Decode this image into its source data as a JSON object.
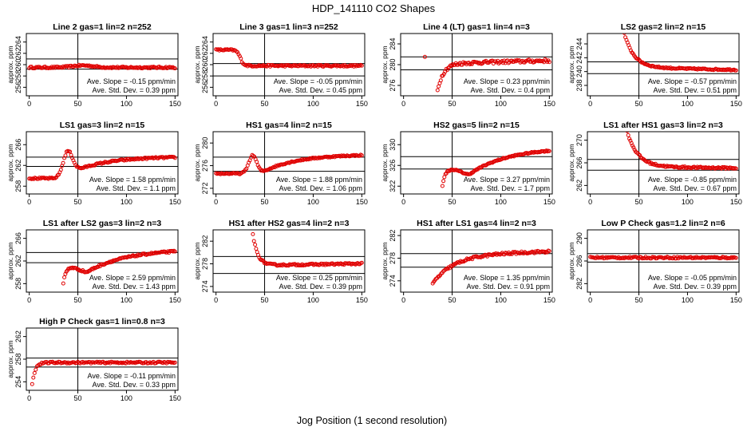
{
  "figure": {
    "title": "HDP_141110  CO2 Shapes",
    "xlabel": "Jog Position (1 second resolution)"
  },
  "chart_data": [
    {
      "type": "scatter",
      "title": "Line 2 gas=1 lin=2 n=252",
      "ylabel": "approx. ppm",
      "xlim": [
        -3,
        153
      ],
      "ylim": [
        254.5,
        265.5
      ],
      "yticks": [
        256,
        258,
        260,
        262,
        264
      ],
      "xticks": [
        0,
        50,
        100,
        150
      ],
      "vline": 50,
      "hlines": [
        261,
        259.2
      ],
      "slope_label": "Ave. Slope = -0.15 ppm/min",
      "std_label": "Ave. Std. Dev. = 0.39 ppm",
      "shape": {
        "kind": "flat",
        "x0": 0,
        "x1": 150,
        "base": 259.5,
        "noise": 0.15,
        "bump": {
          "c": 55,
          "w": 15,
          "a": 0.35
        },
        "points": 130
      }
    },
    {
      "type": "scatter",
      "title": "Line 3 gas=1 lin=3 n=252",
      "ylabel": "approx. ppm",
      "xlim": [
        -3,
        153
      ],
      "ylim": [
        254.5,
        265.5
      ],
      "yticks": [
        256,
        258,
        260,
        262,
        264
      ],
      "xticks": [
        0,
        50,
        100,
        150
      ],
      "vline": 50,
      "hlines": [
        260.2,
        258
      ],
      "slope_label": "Ave. Slope = -0.05 ppm/min",
      "std_label": "Ave. Std. Dev. = 0.45 ppm",
      "shape": {
        "kind": "highstep",
        "x0": 0,
        "x1": 150,
        "hi": 262.6,
        "lo": 259.8,
        "xs": 25,
        "noise": 0.15,
        "points": 130
      }
    },
    {
      "type": "scatter",
      "title": "Line 4 (LT) gas=1 lin=4 n=3",
      "ylabel": "approx. ppm",
      "xlim": [
        -3,
        153
      ],
      "ylim": [
        274,
        286
      ],
      "yticks": [
        276,
        280,
        284
      ],
      "xticks": [
        0,
        50,
        100,
        150
      ],
      "vline": 50,
      "hlines": [
        281.5,
        279
      ],
      "slope_label": "Ave. Slope = 0.23 ppm/min",
      "std_label": "Ave. Std. Dev. = 0.4 ppm",
      "shape": {
        "kind": "rise",
        "x0": 35,
        "x1": 150,
        "start": 275,
        "end": 280.2,
        "tau": 6,
        "slope": 0.005,
        "noise": 0.3,
        "points": 105,
        "extra": [
          [
            22,
            281.5
          ]
        ]
      }
    },
    {
      "type": "scatter",
      "title": "LS2 gas=2 lin=2 n=15",
      "ylabel": "approx. ppm",
      "xlim": [
        -3,
        153
      ],
      "ylim": [
        236.5,
        245.5
      ],
      "yticks": [
        238,
        240,
        242,
        244
      ],
      "xticks": [
        0,
        50,
        100,
        150
      ],
      "vline": 50,
      "hlines": [
        241.4,
        239.7
      ],
      "slope_label": "Ave. Slope = -0.57 ppm/min",
      "std_label": "Ave. Std. Dev. = 0.51 ppm",
      "shape": {
        "kind": "decay",
        "x0": 35,
        "x1": 150,
        "start": 245.5,
        "end": 240.6,
        "tau": 10,
        "slope": -0.003,
        "noise": 0.1,
        "points": 105
      }
    },
    {
      "type": "scatter",
      "title": "LS1 gas=3 lin=2 n=15",
      "ylabel": "approx. ppm",
      "xlim": [
        -3,
        153
      ],
      "ylim": [
        256.5,
        268.5
      ],
      "yticks": [
        258,
        262,
        266
      ],
      "xticks": [
        0,
        50,
        100,
        150
      ],
      "vline": 50,
      "hlines": [
        263.6,
        261.8
      ],
      "slope_label": "Ave. Slope = 1.58 ppm/min",
      "std_label": "Ave. Std. Dev. = 1.1 ppm",
      "shape": {
        "kind": "wave",
        "x0": 0,
        "x1": 150,
        "pre": 259.5,
        "peak": 264.8,
        "c": 40,
        "w": 7,
        "trough": 261.5,
        "end": 263.7,
        "noise": 0.15,
        "points": 130
      }
    },
    {
      "type": "scatter",
      "title": "HS1 gas=4 lin=2 n=15",
      "ylabel": "approx. ppm",
      "xlim": [
        -3,
        153
      ],
      "ylim": [
        271,
        282
      ],
      "yticks": [
        272,
        276,
        280
      ],
      "xticks": [
        0,
        50,
        100,
        150
      ],
      "vline": 50,
      "hlines": [
        277.5,
        275
      ],
      "slope_label": "Ave. Slope = 1.88 ppm/min",
      "std_label": "Ave. Std. Dev. = 1.06 ppm",
      "shape": {
        "kind": "wave",
        "x0": 0,
        "x1": 150,
        "pre": 274.6,
        "peak": 277.8,
        "c": 38,
        "w": 6,
        "trough": 275.3,
        "end": 278,
        "noise": 0.12,
        "points": 130
      }
    },
    {
      "type": "scatter",
      "title": "HS2 gas=5 lin=2 n=15",
      "ylabel": "approx. ppm",
      "xlim": [
        -3,
        153
      ],
      "ylim": [
        320.5,
        332.5
      ],
      "yticks": [
        322,
        326,
        330
      ],
      "xticks": [
        0,
        50,
        100,
        150
      ],
      "vline": 50,
      "hlines": [
        327.7,
        325.3
      ],
      "slope_label": "Ave. Slope = 3.27 ppm/min",
      "std_label": "Ave. Std. Dev. = 1.7 ppm",
      "shape": {
        "kind": "dipwave",
        "x0": 40,
        "x1": 150,
        "start": 322,
        "peak": 325.2,
        "c": 52,
        "dip": 324.2,
        "end": 329.5,
        "noise": 0.12,
        "points": 110
      }
    },
    {
      "type": "scatter",
      "title": "LS1 after HS1 gas=3 lin=2 n=3",
      "ylabel": "approx. ppm",
      "xlim": [
        -3,
        153
      ],
      "ylim": [
        260.5,
        271.5
      ],
      "yticks": [
        262,
        266,
        270
      ],
      "xticks": [
        0,
        50,
        100,
        150
      ],
      "vline": 50,
      "hlines": [
        266.6,
        264.7
      ],
      "slope_label": "Ave. Slope = -0.85 ppm/min",
      "std_label": "Ave. Std. Dev. = 0.67 ppm",
      "shape": {
        "kind": "decay",
        "x0": 38,
        "x1": 150,
        "start": 271.5,
        "end": 265.3,
        "tau": 11,
        "slope": -0.002,
        "noise": 0.15,
        "points": 105
      }
    },
    {
      "type": "scatter",
      "title": "LS1 after LS2 gas=3 lin=2 n=3",
      "ylabel": "approx. ppm",
      "xlim": [
        -3,
        153
      ],
      "ylim": [
        256.5,
        267.5
      ],
      "yticks": [
        258,
        262,
        266
      ],
      "xticks": [
        0,
        50,
        100,
        150
      ],
      "vline": 50,
      "hlines": [
        263.5,
        261.7
      ],
      "slope_label": "Ave. Slope = 2.59 ppm/min",
      "std_label": "Ave. Std. Dev. = 1.43 ppm",
      "shape": {
        "kind": "dipwave",
        "x0": 35,
        "x1": 150,
        "start": 258,
        "peak": 260.9,
        "c": 44,
        "dip": 260,
        "end": 264.1,
        "noise": 0.15,
        "points": 110
      }
    },
    {
      "type": "scatter",
      "title": "HS1 after HS2 gas=4 lin=2 n=3",
      "ylabel": "approx. ppm",
      "xlim": [
        -3,
        153
      ],
      "ylim": [
        273,
        284
      ],
      "yticks": [
        274,
        278,
        282
      ],
      "xticks": [
        0,
        50,
        100,
        150
      ],
      "vline": 50,
      "hlines": [
        279.3,
        276.3
      ],
      "slope_label": "Ave. Slope = 0.25 ppm/min",
      "std_label": "Ave. Std. Dev. = 0.39 ppm",
      "shape": {
        "kind": "decay",
        "x0": 38,
        "x1": 150,
        "start": 283.2,
        "end": 277.7,
        "tau": 5,
        "slope": 0.003,
        "noise": 0.15,
        "points": 105
      }
    },
    {
      "type": "scatter",
      "title": "HS1 after LS1 gas=4 lin=2 n=3",
      "ylabel": "approx. ppm",
      "xlim": [
        -3,
        153
      ],
      "ylim": [
        272,
        283
      ],
      "yticks": [
        274,
        278,
        282
      ],
      "xticks": [
        0,
        50,
        100,
        150
      ],
      "vline": 50,
      "hlines": [
        278.8,
        276.4
      ],
      "slope_label": "Ave. Slope = 1.35 ppm/min",
      "std_label": "Ave. Std. Dev. = 0.91 ppm",
      "shape": {
        "kind": "rise",
        "x0": 30,
        "x1": 150,
        "start": 273.5,
        "end": 278.6,
        "tau": 22,
        "slope": 0.005,
        "noise": 0.2,
        "points": 110
      }
    },
    {
      "type": "scatter",
      "title": "Low P Check gas=1.2 lin=2 n=6",
      "ylabel": "approx. ppm",
      "xlim": [
        -3,
        153
      ],
      "ylim": [
        280.5,
        291.5
      ],
      "yticks": [
        282,
        286,
        290
      ],
      "xticks": [
        0,
        50,
        100,
        150
      ],
      "vline": 50,
      "hlines": [
        287.3,
        285.8
      ],
      "slope_label": "Ave. Slope = -0.05 ppm/min",
      "std_label": "Ave. Std. Dev. = 0.39 ppm",
      "shape": {
        "kind": "flat",
        "x0": 0,
        "x1": 150,
        "base": 286.6,
        "noise": 0.15,
        "points": 130
      }
    },
    {
      "type": "scatter",
      "title": "High P Check gas=1 lin=0.8 n=3",
      "ylabel": "approx. ppm",
      "xlim": [
        -3,
        153
      ],
      "ylim": [
        252.5,
        263.5
      ],
      "yticks": [
        254,
        258,
        262
      ],
      "xticks": [
        0,
        50,
        100,
        150
      ],
      "vline": 50,
      "hlines": [
        258.2,
        256.6
      ],
      "slope_label": "Ave. Slope = -0.11 ppm/min",
      "std_label": "Ave. Std. Dev. = 0.33 ppm",
      "shape": {
        "kind": "rise",
        "x0": 3,
        "x1": 150,
        "start": 253.5,
        "end": 257.4,
        "tau": 3,
        "slope": 0,
        "noise": 0.15,
        "points": 120
      }
    }
  ]
}
